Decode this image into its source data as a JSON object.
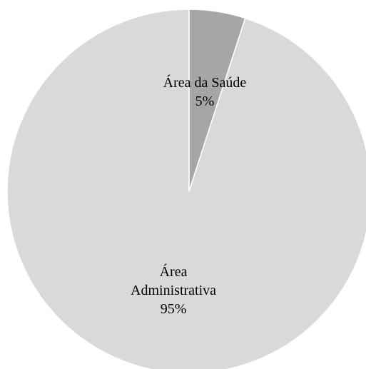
{
  "chart_data": {
    "type": "pie",
    "categories": [
      "Área da Saúde",
      "Área Administrativa"
    ],
    "values": [
      5,
      95
    ],
    "value_labels": [
      "5%",
      "95%"
    ],
    "colors": [
      "#a6a6a6",
      "#d9d9d9"
    ]
  }
}
